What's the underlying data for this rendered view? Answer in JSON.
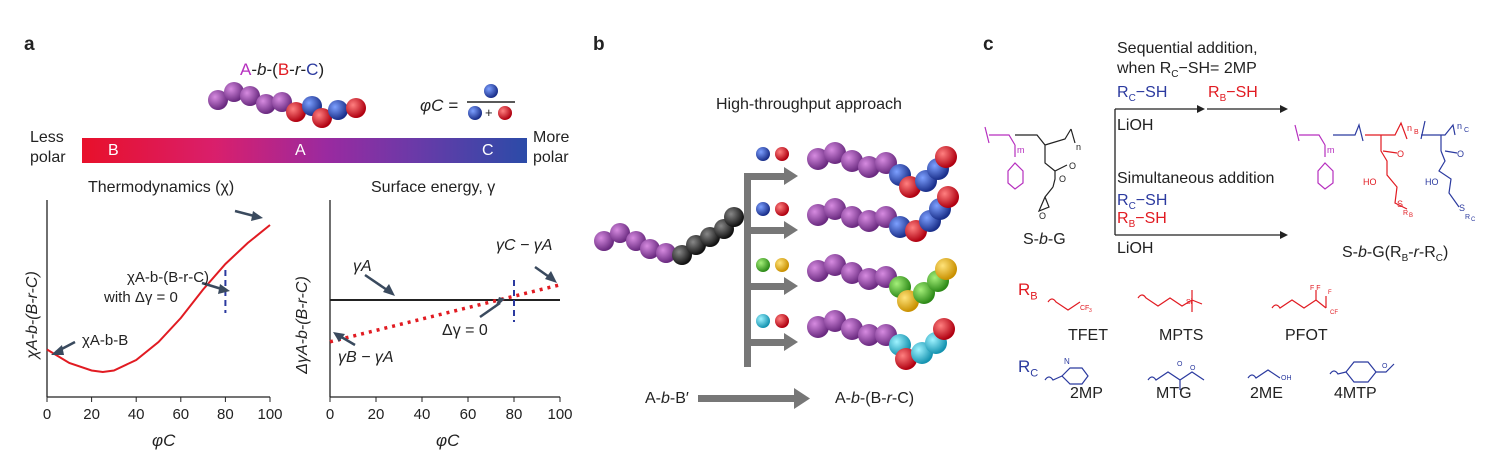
{
  "panel_a": {
    "label": "a",
    "polymer": "A-b-(B-r-C)",
    "phi_eq_lhs": "φC =",
    "phi_plus": "+",
    "bar": {
      "left": "Less polar",
      "right": "More polar",
      "b": "B",
      "a": "A",
      "c": "C"
    },
    "colors": {
      "A": "#8b3a9e",
      "B": "#e11b22",
      "C": "#2b4ba8",
      "D": "#333333"
    }
  },
  "chart_data": [
    {
      "type": "line",
      "title": "Thermodynamics (χ)",
      "xlabel": "φC",
      "ylabel": "χA-b-(B-r-C)",
      "xlim": [
        0,
        100
      ],
      "xticks": [
        "0",
        "20",
        "40",
        "60",
        "80",
        "100"
      ],
      "series": [
        {
          "x": [
            0,
            10,
            20,
            25,
            30,
            40,
            50,
            60,
            70,
            80,
            90,
            100
          ],
          "y": [
            0.17,
            0.08,
            0.03,
            0.02,
            0.03,
            0.1,
            0.22,
            0.38,
            0.57,
            0.74,
            0.88,
            1.0
          ]
        }
      ],
      "annotations": [
        "χA-b-(B-r-C)",
        "with Δγ = 0",
        "χA-b-B"
      ],
      "marker_x": 80
    },
    {
      "type": "line",
      "title": "Surface energy, γ",
      "xlabel": "φC",
      "ylabel": "ΔγA-b-(B-r-C)",
      "xlim": [
        0,
        100
      ],
      "xticks": [
        "0",
        "20",
        "40",
        "60",
        "80",
        "100"
      ],
      "series": [
        {
          "x": [
            0,
            100
          ],
          "y": [
            0.5,
            0.5
          ]
        },
        {
          "x": [
            0,
            100
          ],
          "y": [
            0.28,
            0.58
          ]
        }
      ],
      "annotations": [
        "γA",
        "γC − γA",
        "Δγ = 0",
        "γB − γA"
      ],
      "marker_x": 80
    }
  ],
  "panel_b": {
    "label": "b",
    "title": "High-throughput approach",
    "left_label": "A-b-B′",
    "right_label": "A-b-(B-r-C)"
  },
  "panel_c": {
    "label": "c",
    "seq_line1": "Sequential addition,",
    "seq_line2": "when RC−SH= 2MP",
    "rc_sh": "RC−SH",
    "rb_sh": "RB−SH",
    "lioh": "LiOH",
    "sim": "Simultaneous addition",
    "rc_sh2": "RC−SH",
    "rb_sh2": "RB−SH",
    "lioh2": "LiOH",
    "start": "S-b-G",
    "product": "S-b-G(RB-r-RC)",
    "rb_label": "RB",
    "rc_label": "RC",
    "rb_list": [
      "TFET",
      "MPTS",
      "PFOT"
    ],
    "rc_list": [
      "2MP",
      "MTG",
      "2ME",
      "4MTP"
    ]
  }
}
